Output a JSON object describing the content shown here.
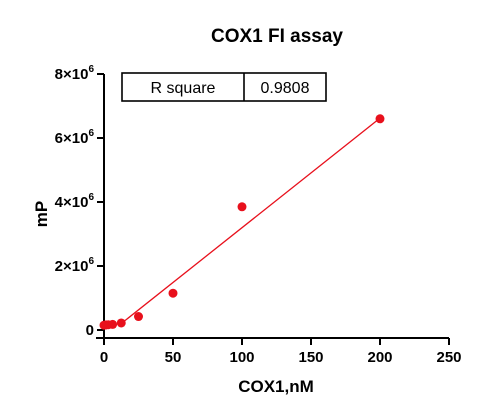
{
  "chart_data": {
    "type": "scatter",
    "title": "COX1 FI assay",
    "xlabel": "COX1,nM",
    "ylabel": "mP",
    "xlim": [
      0,
      250
    ],
    "ylim": [
      0,
      8000000
    ],
    "x_ticks": [
      {
        "value": 0,
        "label": "0"
      },
      {
        "value": 50,
        "label": "50"
      },
      {
        "value": 100,
        "label": "100"
      },
      {
        "value": 150,
        "label": "150"
      },
      {
        "value": 200,
        "label": "200"
      },
      {
        "value": 250,
        "label": "250"
      }
    ],
    "y_ticks": [
      {
        "value": 0,
        "label": "0",
        "exp": ""
      },
      {
        "value": 2000000,
        "label": "2×10",
        "exp": "6"
      },
      {
        "value": 4000000,
        "label": "4×10",
        "exp": "6"
      },
      {
        "value": 6000000,
        "label": "6×10",
        "exp": "6"
      },
      {
        "value": 8000000,
        "label": "8×10",
        "exp": "6"
      }
    ],
    "points": [
      {
        "x": 0,
        "y": 150000
      },
      {
        "x": 0.8,
        "y": 155000
      },
      {
        "x": 1.6,
        "y": 160000
      },
      {
        "x": 3.1,
        "y": 165000
      },
      {
        "x": 6.25,
        "y": 175000
      },
      {
        "x": 12.5,
        "y": 220000
      },
      {
        "x": 25,
        "y": 420000
      },
      {
        "x": 50,
        "y": 1150000
      },
      {
        "x": 100,
        "y": 3850000
      },
      {
        "x": 200,
        "y": 6600000
      }
    ],
    "fit_line": {
      "x0": 11,
      "y0": 150000,
      "x1": 200,
      "y1": 6620000
    },
    "point_color": "#e8101c",
    "line_color": "#e8101c",
    "r_square": {
      "label": "R square",
      "value": "0.9808"
    },
    "grid": false
  }
}
